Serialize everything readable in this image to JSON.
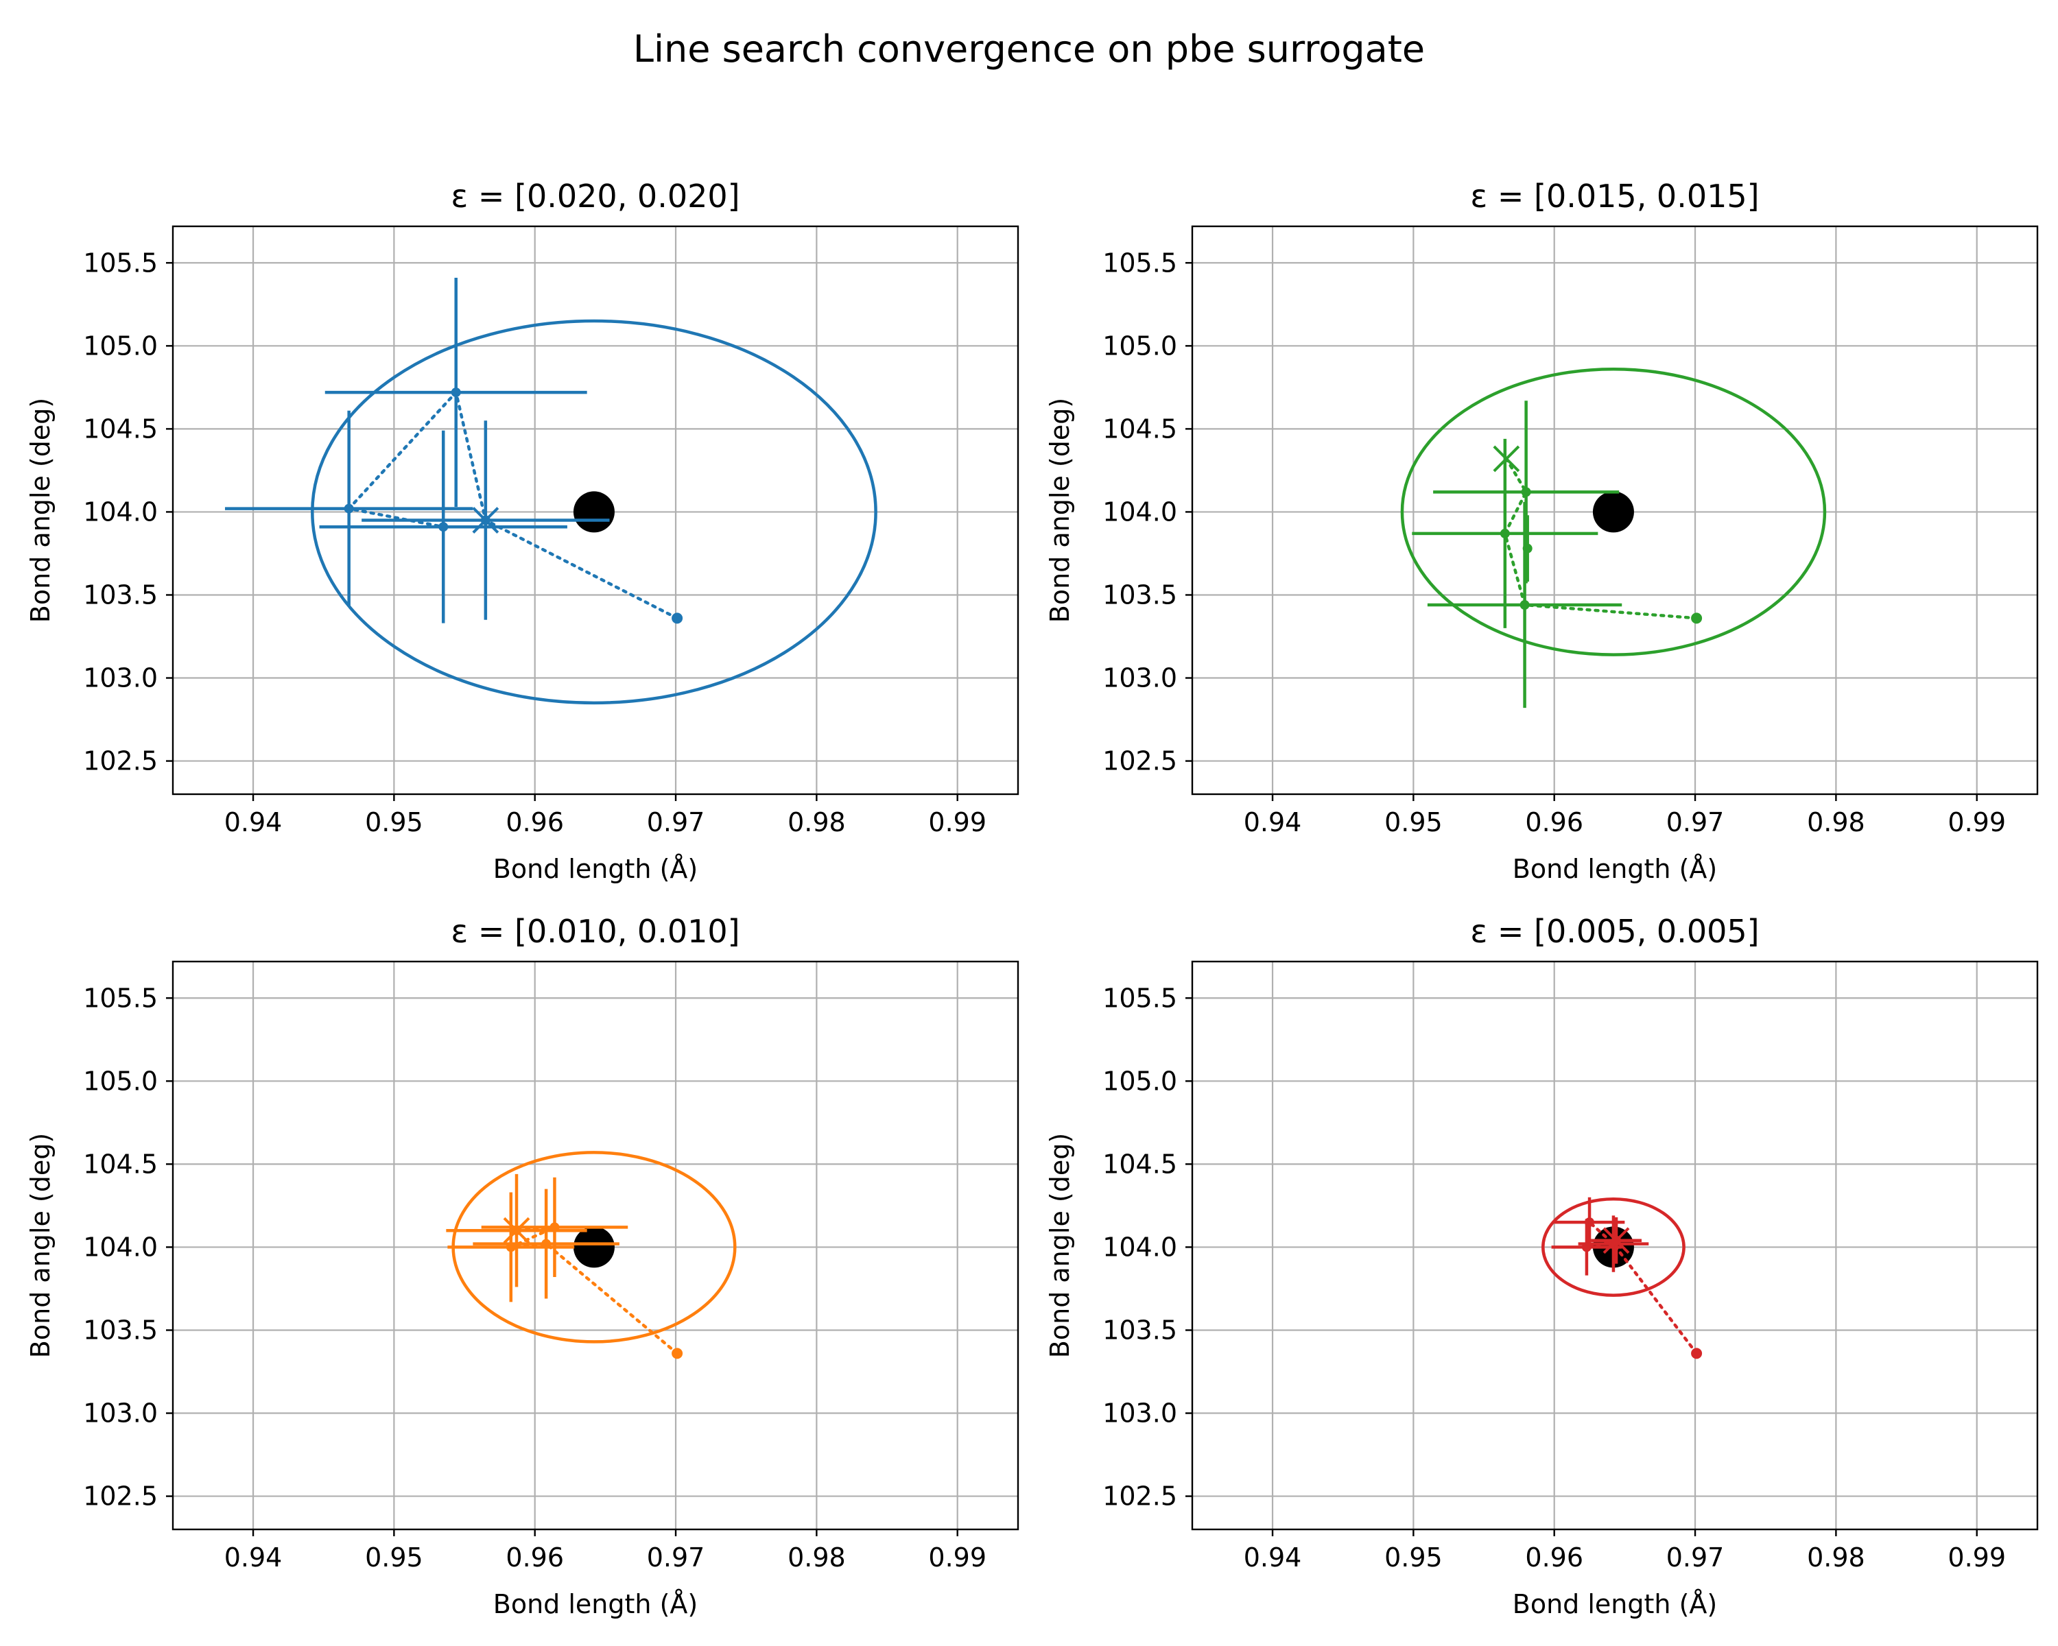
{
  "figure": {
    "title": "Line search convergence on pbe surrogate"
  },
  "chart_data": [
    {
      "type": "scatter",
      "title": "ε = [0.020, 0.020]",
      "xlabel": "Bond length (Å)",
      "ylabel": "Bond angle (deg)",
      "xlim": [
        0.9343,
        0.9943
      ],
      "ylim": [
        102.3,
        105.72
      ],
      "xticks": [
        0.94,
        0.95,
        0.96,
        0.97,
        0.98,
        0.99
      ],
      "xtick_labels": [
        "0.94",
        "0.95",
        "0.96",
        "0.97",
        "0.98",
        "0.99"
      ],
      "yticks": [
        102.5,
        103.0,
        103.5,
        104.0,
        104.5,
        105.0,
        105.5
      ],
      "ytick_labels": [
        "102.5",
        "103.0",
        "103.5",
        "104.0",
        "104.5",
        "105.0",
        "105.5"
      ],
      "grid": true,
      "color": "#1f77b4",
      "target": {
        "x": 0.9642,
        "y": 104.0
      },
      "ellipse": {
        "cx": 0.9642,
        "cy": 104.0,
        "rx": 0.02,
        "ry": 1.15
      },
      "start": {
        "x": 0.9701,
        "y": 103.36
      },
      "path": [
        {
          "x": 0.9701,
          "y": 103.36
        },
        {
          "x": 0.9565,
          "y": 103.95
        },
        {
          "x": 0.9544,
          "y": 104.72
        },
        {
          "x": 0.9468,
          "y": 104.02
        },
        {
          "x": 0.9535,
          "y": 103.91
        }
      ],
      "points": [
        {
          "x": 0.9544,
          "y": 104.72,
          "xerr": 0.0093,
          "yerr": 0.69
        },
        {
          "x": 0.9468,
          "y": 104.02,
          "xerr": 0.0088,
          "yerr": 0.59
        },
        {
          "x": 0.9535,
          "y": 103.91,
          "xerr": 0.0088,
          "yerr": 0.58
        },
        {
          "x": 0.9565,
          "y": 103.95,
          "xerr": 0.0088,
          "yerr": 0.6
        }
      ],
      "final": {
        "x": 0.9565,
        "y": 103.95
      }
    },
    {
      "type": "scatter",
      "title": "ε = [0.015, 0.015]",
      "xlabel": "Bond length (Å)",
      "ylabel": "Bond angle (deg)",
      "xlim": [
        0.9343,
        0.9943
      ],
      "ylim": [
        102.3,
        105.72
      ],
      "xticks": [
        0.94,
        0.95,
        0.96,
        0.97,
        0.98,
        0.99
      ],
      "xtick_labels": [
        "0.94",
        "0.95",
        "0.96",
        "0.97",
        "0.98",
        "0.99"
      ],
      "yticks": [
        102.5,
        103.0,
        103.5,
        104.0,
        104.5,
        105.0,
        105.5
      ],
      "ytick_labels": [
        "102.5",
        "103.0",
        "103.5",
        "104.0",
        "104.5",
        "105.0",
        "105.5"
      ],
      "grid": true,
      "color": "#2ca02c",
      "target": {
        "x": 0.9642,
        "y": 104.0
      },
      "ellipse": {
        "cx": 0.9642,
        "cy": 104.0,
        "rx": 0.015,
        "ry": 0.86
      },
      "start": {
        "x": 0.9701,
        "y": 103.36
      },
      "path": [
        {
          "x": 0.9701,
          "y": 103.36
        },
        {
          "x": 0.9579,
          "y": 103.44
        },
        {
          "x": 0.9565,
          "y": 103.87
        },
        {
          "x": 0.958,
          "y": 104.12
        },
        {
          "x": 0.9566,
          "y": 104.32
        }
      ],
      "points": [
        {
          "x": 0.9579,
          "y": 103.44,
          "xerr": 0.0069,
          "yerr": 0.62
        },
        {
          "x": 0.9565,
          "y": 103.87,
          "xerr": 0.0066,
          "yerr": 0.57
        },
        {
          "x": 0.958,
          "y": 104.12,
          "xerr": 0.0066,
          "yerr": 0.55
        },
        {
          "x": 0.9581,
          "y": 103.78,
          "xerr": 0.0,
          "yerr": 0.2
        }
      ],
      "final": {
        "x": 0.9566,
        "y": 104.32
      }
    },
    {
      "type": "scatter",
      "title": "ε = [0.010, 0.010]",
      "xlabel": "Bond length (Å)",
      "ylabel": "Bond angle (deg)",
      "xlim": [
        0.9343,
        0.9943
      ],
      "ylim": [
        102.3,
        105.72
      ],
      "xticks": [
        0.94,
        0.95,
        0.96,
        0.97,
        0.98,
        0.99
      ],
      "xtick_labels": [
        "0.94",
        "0.95",
        "0.96",
        "0.97",
        "0.98",
        "0.99"
      ],
      "yticks": [
        102.5,
        103.0,
        103.5,
        104.0,
        104.5,
        105.0,
        105.5
      ],
      "ytick_labels": [
        "102.5",
        "103.0",
        "103.5",
        "104.0",
        "104.5",
        "105.0",
        "105.5"
      ],
      "grid": true,
      "color": "#ff7f0e",
      "target": {
        "x": 0.9642,
        "y": 104.0
      },
      "ellipse": {
        "cx": 0.9642,
        "cy": 104.0,
        "rx": 0.01,
        "ry": 0.57
      },
      "start": {
        "x": 0.9701,
        "y": 103.36
      },
      "path": [
        {
          "x": 0.9701,
          "y": 103.36
        },
        {
          "x": 0.9608,
          "y": 104.02
        },
        {
          "x": 0.9583,
          "y": 104.0
        },
        {
          "x": 0.9614,
          "y": 104.12
        },
        {
          "x": 0.9587,
          "y": 104.1
        }
      ],
      "points": [
        {
          "x": 0.9608,
          "y": 104.02,
          "xerr": 0.0052,
          "yerr": 0.33
        },
        {
          "x": 0.9583,
          "y": 104.0,
          "xerr": 0.0045,
          "yerr": 0.33
        },
        {
          "x": 0.9614,
          "y": 104.12,
          "xerr": 0.0052,
          "yerr": 0.3
        },
        {
          "x": 0.9587,
          "y": 104.1,
          "xerr": 0.005,
          "yerr": 0.34
        }
      ],
      "final": {
        "x": 0.9587,
        "y": 104.1
      }
    },
    {
      "type": "scatter",
      "title": "ε = [0.005, 0.005]",
      "xlabel": "Bond length (Å)",
      "ylabel": "Bond angle (deg)",
      "xlim": [
        0.9343,
        0.9943
      ],
      "ylim": [
        102.3,
        105.72
      ],
      "xticks": [
        0.94,
        0.95,
        0.96,
        0.97,
        0.98,
        0.99
      ],
      "xtick_labels": [
        "0.94",
        "0.95",
        "0.96",
        "0.97",
        "0.98",
        "0.99"
      ],
      "yticks": [
        102.5,
        103.0,
        103.5,
        104.0,
        104.5,
        105.0,
        105.5
      ],
      "ytick_labels": [
        "102.5",
        "103.0",
        "103.5",
        "104.0",
        "104.5",
        "105.0",
        "105.5"
      ],
      "grid": true,
      "color": "#d62728",
      "target": {
        "x": 0.9642,
        "y": 104.0
      },
      "ellipse": {
        "cx": 0.9642,
        "cy": 104.0,
        "rx": 0.005,
        "ry": 0.29
      },
      "start": {
        "x": 0.9701,
        "y": 103.36
      },
      "path": [
        {
          "x": 0.9701,
          "y": 103.36
        },
        {
          "x": 0.9642,
          "y": 104.02
        },
        {
          "x": 0.9625,
          "y": 104.15
        },
        {
          "x": 0.9623,
          "y": 104.0
        },
        {
          "x": 0.9644,
          "y": 104.04
        }
      ],
      "points": [
        {
          "x": 0.9625,
          "y": 104.15,
          "xerr": 0.0025,
          "yerr": 0.15
        },
        {
          "x": 0.9623,
          "y": 104.0,
          "xerr": 0.0025,
          "yerr": 0.17
        },
        {
          "x": 0.9642,
          "y": 104.02,
          "xerr": 0.0025,
          "yerr": 0.17
        },
        {
          "x": 0.9644,
          "y": 104.04,
          "xerr": 0.0018,
          "yerr": 0.14
        }
      ],
      "final": {
        "x": 0.9644,
        "y": 104.04
      }
    }
  ]
}
